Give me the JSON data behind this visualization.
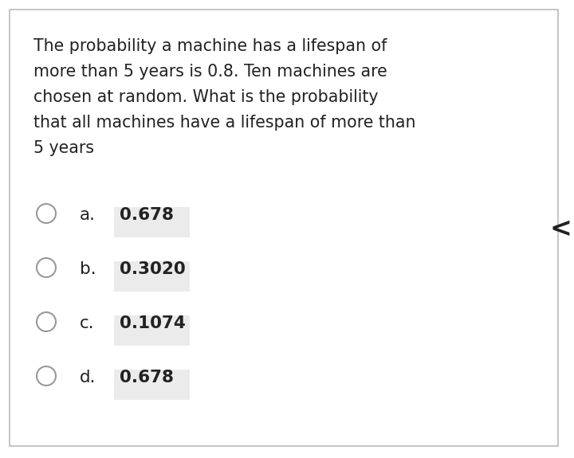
{
  "question_lines": [
    "The probability a machine has a lifespan of",
    "more than 5 years is 0.8. Ten machines are",
    "chosen at random. What is the probability",
    "that all machines have a lifespan of more than",
    "5 years"
  ],
  "options": [
    {
      "label": "a.",
      "value": "0.678"
    },
    {
      "label": "b.",
      "value": "0.3020"
    },
    {
      "label": "c.",
      "value": "0.1074"
    },
    {
      "label": "d.",
      "value": "0.678"
    }
  ],
  "bg_color": "#ffffff",
  "border_color": "#bbbbbb",
  "text_color": "#222222",
  "option_bg_color": "#ebebeb",
  "circle_edge_color": "#999999",
  "question_fontsize": 14.8,
  "option_fontsize": 15.5,
  "arrow_color": "#222222",
  "fig_width": 7.2,
  "fig_height": 5.75
}
